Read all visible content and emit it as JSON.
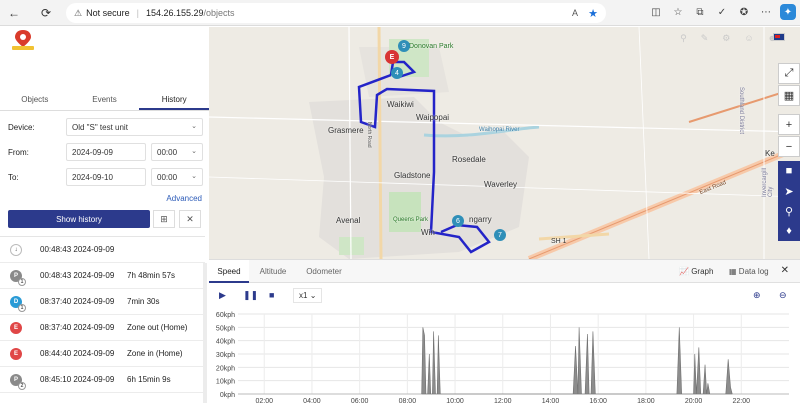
{
  "browser": {
    "security": "Not secure",
    "url_host": "154.26.155.29",
    "url_path": "/objects",
    "font_icon": "A"
  },
  "tabs": [
    "Objects",
    "Events",
    "History"
  ],
  "active_tab": "History",
  "form": {
    "device_label": "Device:",
    "device_value": "Old \"S\" test unit",
    "from_label": "From:",
    "from_date": "2024-09-09",
    "from_time": "00:00",
    "to_label": "To:",
    "to_date": "2024-09-10",
    "to_time": "00:00",
    "advanced": "Advanced",
    "show_history": "Show history"
  },
  "events": [
    {
      "icon": "arrow-down",
      "color": "#ffffff",
      "letter": "",
      "sub": "",
      "date": "00:48:43 2024-09-09",
      "desc": ""
    },
    {
      "icon": "parking",
      "color": "#8a8a8a",
      "letter": "P",
      "sub": "1",
      "date": "00:48:43 2024-09-09",
      "desc": "7h 48min 57s"
    },
    {
      "icon": "stop",
      "color": "#2a9bd6",
      "letter": "D",
      "sub": "1",
      "date": "08:37:40 2024-09-09",
      "desc": "7min 30s"
    },
    {
      "icon": "event",
      "color": "#e04646",
      "letter": "E",
      "sub": "",
      "date": "08:37:40 2024-09-09",
      "desc": "Zone out (Home)"
    },
    {
      "icon": "event",
      "color": "#e04646",
      "letter": "E",
      "sub": "",
      "date": "08:44:40 2024-09-09",
      "desc": "Zone in (Home)"
    },
    {
      "icon": "parking",
      "color": "#8a8a8a",
      "letter": "P",
      "sub": "2",
      "date": "08:45:10 2024-09-09",
      "desc": "6h 15min 9s"
    }
  ],
  "map_labels": {
    "donovan_park": "Donovan Park",
    "waikiwi": "Waikiwi",
    "waipopai": "Waipopai",
    "grasmere": "Grasmere",
    "rosedale": "Rosedale",
    "gladstone": "Gladstone",
    "waverley": "Waverley",
    "avenal": "Avenal",
    "windsor": "Win",
    "glengarry": "ngarry",
    "sh1": "SH 1",
    "east_road": "East Road",
    "waihopai_river": "Waihopai River",
    "southland_district": "Southland District",
    "invercargill": "Invercargill City",
    "ke": "Ke",
    "north_road": "North Road",
    "queens_park": "Queens Park"
  },
  "markers": [
    "9",
    "4",
    "6",
    "7",
    "E"
  ],
  "graph": {
    "tabs": [
      "Speed",
      "Altitude",
      "Odometer"
    ],
    "active": "Speed",
    "right_tabs": [
      "Graph",
      "Data log"
    ],
    "speed_select": "x1"
  },
  "chart_data": {
    "type": "area",
    "title": "",
    "xlabel": "",
    "ylabel": "",
    "y_unit": "kph",
    "ylim": [
      0,
      60
    ],
    "yticks": [
      "0kph",
      "10kph",
      "20kph",
      "30kph",
      "40kph",
      "50kph",
      "60kph"
    ],
    "xticks": [
      "02:00",
      "04:00",
      "06:00",
      "08:00",
      "10:00",
      "12:00",
      "14:00",
      "16:00",
      "18:00",
      "20:00",
      "22:00"
    ],
    "x_range_hours": [
      0.9,
      24.0
    ],
    "series": [
      {
        "points": [
          [
            8.6,
            0
          ],
          [
            8.65,
            50
          ],
          [
            8.72,
            44
          ],
          [
            8.78,
            0
          ],
          [
            8.85,
            0
          ],
          [
            8.92,
            30
          ],
          [
            8.98,
            0
          ],
          [
            9.05,
            0
          ],
          [
            9.1,
            47
          ],
          [
            9.18,
            0
          ],
          [
            9.25,
            0
          ],
          [
            9.3,
            44
          ],
          [
            9.38,
            0
          ],
          [
            14.95,
            0
          ],
          [
            15.05,
            36
          ],
          [
            15.15,
            0
          ],
          [
            15.15,
            0
          ],
          [
            15.2,
            50
          ],
          [
            15.3,
            0
          ],
          [
            15.45,
            0
          ],
          [
            15.55,
            45
          ],
          [
            15.62,
            0
          ],
          [
            15.7,
            0
          ],
          [
            15.78,
            47
          ],
          [
            15.88,
            0
          ],
          [
            19.3,
            0
          ],
          [
            19.4,
            50
          ],
          [
            19.5,
            0
          ],
          [
            20.0,
            0
          ],
          [
            20.05,
            30
          ],
          [
            20.12,
            0
          ],
          [
            20.12,
            0
          ],
          [
            20.22,
            35
          ],
          [
            20.3,
            0
          ],
          [
            20.4,
            0
          ],
          [
            20.48,
            22
          ],
          [
            20.55,
            0
          ],
          [
            20.55,
            0
          ],
          [
            20.6,
            8
          ],
          [
            20.68,
            0
          ],
          [
            21.35,
            0
          ],
          [
            21.45,
            26
          ],
          [
            21.55,
            5
          ],
          [
            21.62,
            0
          ]
        ]
      }
    ],
    "grid": true,
    "fill_color": "#8d8d8d"
  }
}
